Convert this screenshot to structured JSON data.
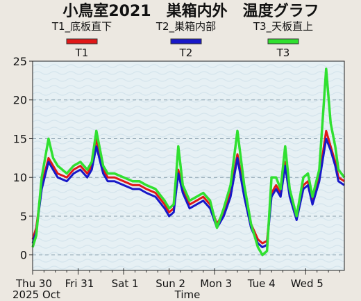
{
  "chart_data": {
    "type": "line",
    "title": "小鳥室2021　巣箱内外　温度グラフ",
    "xlabel": "Time",
    "ylabel": "",
    "ylim": [
      -2,
      25
    ],
    "yticks": [
      0,
      5,
      10,
      15,
      20,
      25
    ],
    "grid": true,
    "legend_position": "top",
    "x_tick_labels": [
      "Thu 30",
      "Fri 31",
      "Sat 1",
      "Sun 2",
      "Mon 3",
      "Tue 4",
      "Wed 5"
    ],
    "x_sub_label": "2025 Oct",
    "x_range_days": [
      0,
      6.85
    ],
    "series": [
      {
        "name": "T1_底板直下",
        "legend_tag": "T1",
        "color": "#e01818",
        "x": [
          0,
          0.08,
          0.2,
          0.35,
          0.45,
          0.55,
          0.75,
          0.9,
          1.05,
          1.2,
          1.3,
          1.4,
          1.55,
          1.65,
          1.8,
          2.0,
          2.2,
          2.35,
          2.5,
          2.7,
          2.9,
          3.0,
          3.1,
          3.15,
          3.2,
          3.3,
          3.45,
          3.6,
          3.75,
          3.9,
          4.05,
          4.2,
          4.35,
          4.5,
          4.65,
          4.8,
          4.95,
          5.05,
          5.15,
          5.25,
          5.35,
          5.45,
          5.55,
          5.65,
          5.8,
          5.95,
          6.05,
          6.15,
          6.3,
          6.45,
          6.55,
          6.65,
          6.72,
          6.85
        ],
        "y": [
          2,
          3.5,
          9,
          12.5,
          11.5,
          10.5,
          10,
          11,
          11.5,
          10.5,
          11.5,
          15,
          11,
          10,
          10,
          9.5,
          9,
          9,
          8.5,
          8,
          6.5,
          5.5,
          6,
          8.5,
          11,
          8.5,
          6.5,
          7,
          7.5,
          6.5,
          4,
          5.5,
          8,
          13,
          8,
          4,
          2,
          1.5,
          1.8,
          8,
          9,
          8,
          12,
          8,
          5,
          9,
          9.5,
          7,
          10,
          16,
          14,
          12,
          10,
          9.5
        ]
      },
      {
        "name": "T2_巣箱内部",
        "legend_tag": "T2",
        "color": "#1818c8",
        "x": [
          0,
          0.08,
          0.2,
          0.35,
          0.45,
          0.55,
          0.75,
          0.9,
          1.05,
          1.2,
          1.3,
          1.4,
          1.55,
          1.65,
          1.8,
          2.0,
          2.2,
          2.35,
          2.5,
          2.7,
          2.9,
          3.0,
          3.1,
          3.15,
          3.2,
          3.3,
          3.45,
          3.6,
          3.75,
          3.9,
          4.05,
          4.2,
          4.35,
          4.5,
          4.65,
          4.8,
          4.95,
          5.05,
          5.15,
          5.25,
          5.35,
          5.45,
          5.55,
          5.65,
          5.8,
          5.95,
          6.05,
          6.15,
          6.3,
          6.45,
          6.55,
          6.65,
          6.72,
          6.85
        ],
        "y": [
          1.5,
          3,
          8.5,
          12,
          11,
          10,
          9.5,
          10.5,
          11,
          10,
          11,
          14,
          10.5,
          9.5,
          9.5,
          9,
          8.5,
          8.5,
          8,
          7.5,
          6,
          5,
          5.5,
          8,
          10.5,
          8,
          6,
          6.5,
          7,
          6,
          3.5,
          5,
          7.5,
          12.5,
          7.5,
          3.5,
          1.5,
          1,
          1.3,
          7.5,
          8.5,
          7.5,
          11.5,
          7.5,
          4.5,
          8.5,
          9,
          6.5,
          9.5,
          15,
          13.5,
          11.5,
          9.5,
          9
        ]
      },
      {
        "name": "T3_天板直上",
        "legend_tag": "T3",
        "color": "#30e030",
        "x": [
          0,
          0.08,
          0.2,
          0.35,
          0.45,
          0.55,
          0.75,
          0.9,
          1.05,
          1.2,
          1.3,
          1.4,
          1.55,
          1.65,
          1.8,
          2.0,
          2.2,
          2.35,
          2.5,
          2.7,
          2.9,
          3.0,
          3.1,
          3.15,
          3.2,
          3.3,
          3.45,
          3.6,
          3.75,
          3.9,
          4.05,
          4.2,
          4.35,
          4.5,
          4.65,
          4.8,
          4.95,
          5.05,
          5.15,
          5.25,
          5.35,
          5.45,
          5.55,
          5.65,
          5.8,
          5.95,
          6.05,
          6.15,
          6.3,
          6.45,
          6.55,
          6.65,
          6.72,
          6.85
        ],
        "y": [
          1,
          2.5,
          10,
          15,
          12.5,
          11.5,
          10.5,
          11.5,
          12,
          11,
          12,
          16,
          11.5,
          10.5,
          10.5,
          10,
          9.5,
          9.5,
          9,
          8.5,
          7,
          6,
          6.5,
          10,
          14,
          9,
          7,
          7.5,
          8,
          7,
          3.5,
          6,
          9,
          16,
          9,
          4,
          1,
          0,
          0.5,
          10,
          10,
          8.5,
          14,
          8.5,
          5,
          10,
          10.5,
          7.5,
          11,
          24,
          17,
          14,
          11,
          10
        ]
      }
    ]
  }
}
